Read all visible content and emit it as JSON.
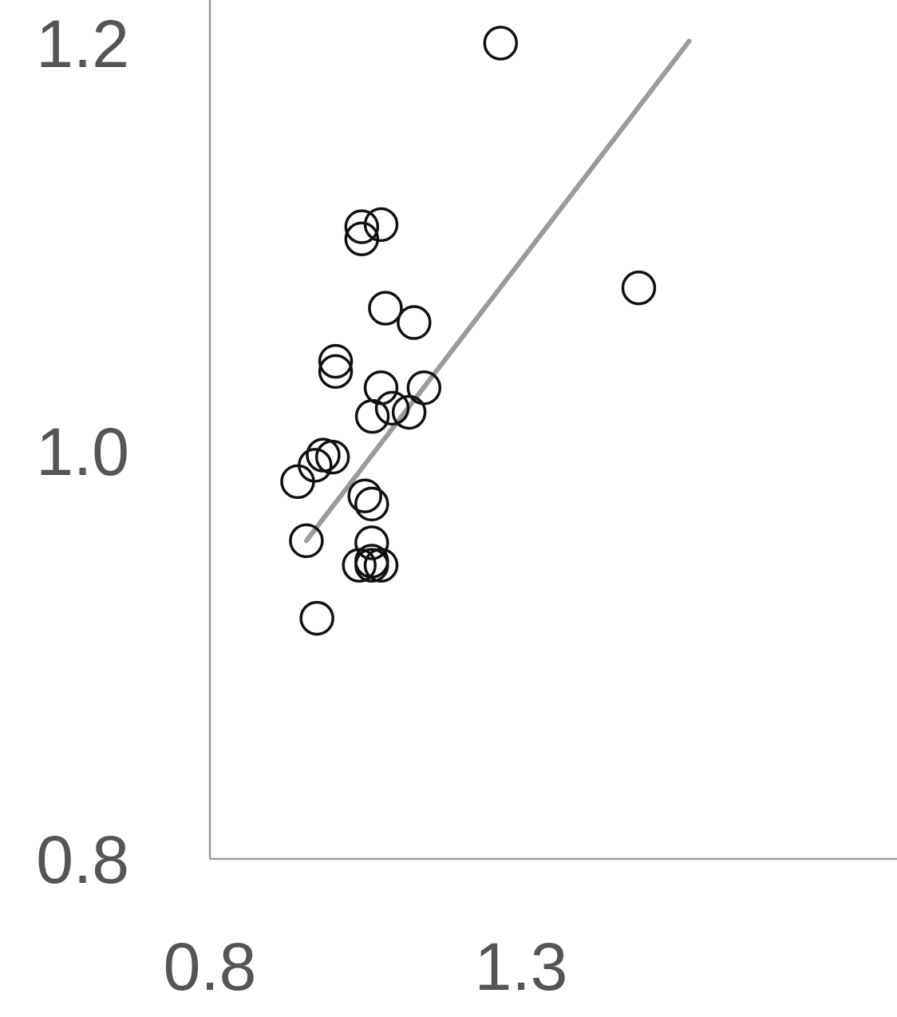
{
  "chart_data": {
    "type": "scatter",
    "title": "",
    "xlabel": "",
    "ylabel": "",
    "xlim": [
      0.8,
      1.57
    ],
    "ylim": [
      0.8,
      1.22
    ],
    "x_ticks": [
      {
        "value": 0.8,
        "label": "0.8"
      },
      {
        "value": 1.3,
        "label": "1.3"
      }
    ],
    "y_ticks": [
      {
        "value": 0.8,
        "label": "0.8"
      },
      {
        "value": 1.0,
        "label": "1.0"
      },
      {
        "value": 1.2,
        "label": "1.2"
      }
    ],
    "grid": false,
    "point_style": {
      "shape": "open-circle",
      "color": "#111111"
    },
    "trend_line": {
      "color": "#9b9b9b",
      "x": [
        0.955,
        1.57
      ],
      "y": [
        0.956,
        1.201
      ]
    },
    "points": [
      {
        "x": 1.267,
        "y": 1.2
      },
      {
        "x": 1.044,
        "y": 1.11
      },
      {
        "x": 1.075,
        "y": 1.111
      },
      {
        "x": 1.044,
        "y": 1.104
      },
      {
        "x": 1.082,
        "y": 1.07
      },
      {
        "x": 1.128,
        "y": 1.063
      },
      {
        "x": 1.002,
        "y": 1.044
      },
      {
        "x": 1.002,
        "y": 1.039
      },
      {
        "x": 1.075,
        "y": 1.031
      },
      {
        "x": 1.144,
        "y": 1.031
      },
      {
        "x": 1.093,
        "y": 1.021
      },
      {
        "x": 1.12,
        "y": 1.019
      },
      {
        "x": 1.061,
        "y": 1.017
      },
      {
        "x": 0.982,
        "y": 0.998
      },
      {
        "x": 0.969,
        "y": 0.993
      },
      {
        "x": 0.997,
        "y": 0.997
      },
      {
        "x": 0.941,
        "y": 0.985
      },
      {
        "x": 1.049,
        "y": 0.978
      },
      {
        "x": 1.06,
        "y": 0.974
      },
      {
        "x": 0.955,
        "y": 0.956
      },
      {
        "x": 1.06,
        "y": 0.955
      },
      {
        "x": 1.04,
        "y": 0.944
      },
      {
        "x": 1.06,
        "y": 0.946
      },
      {
        "x": 1.075,
        "y": 0.944
      },
      {
        "x": 1.06,
        "y": 0.944
      },
      {
        "x": 0.972,
        "y": 0.918
      },
      {
        "x": 1.489,
        "y": 1.08
      }
    ]
  }
}
